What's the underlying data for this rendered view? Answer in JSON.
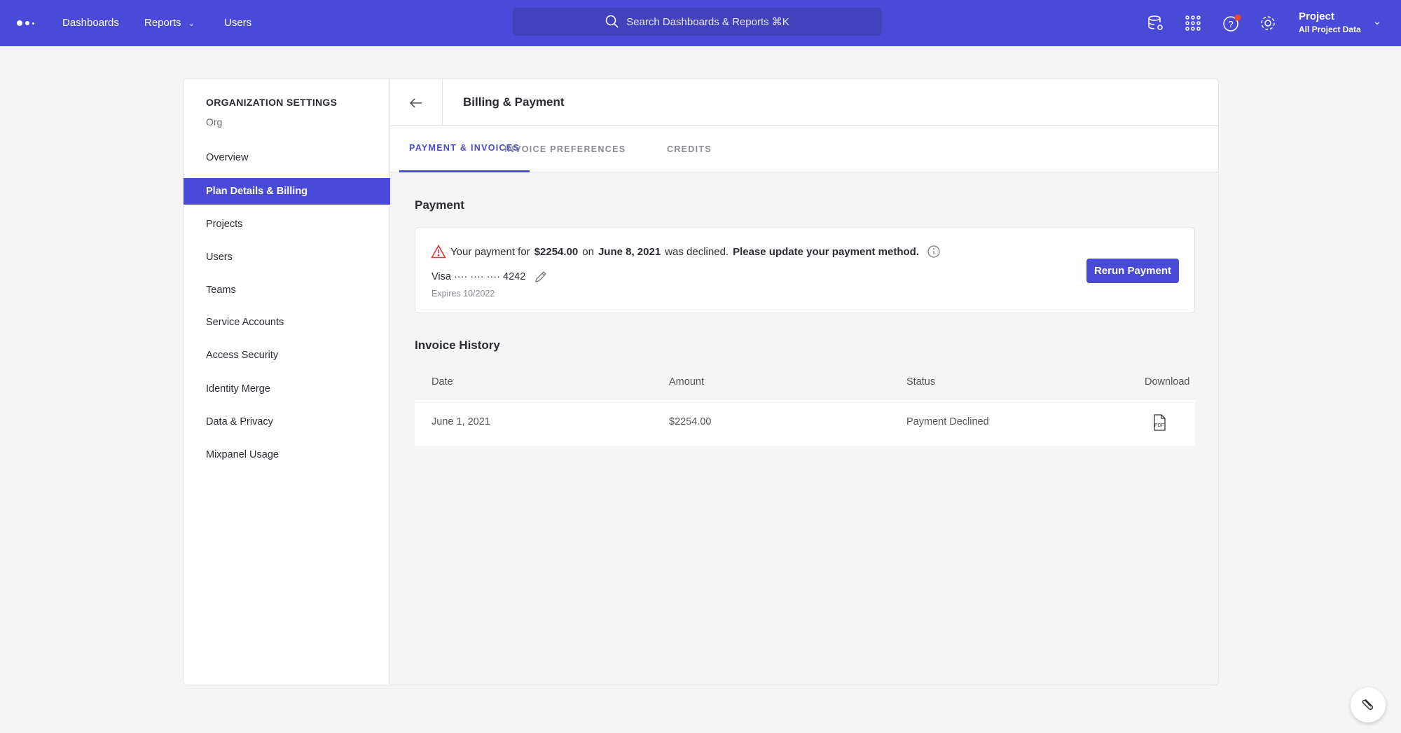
{
  "topbar": {
    "nav": [
      "Dashboards",
      "Reports",
      "Users"
    ],
    "search_placeholder": "Search Dashboards & Reports ⌘K",
    "project_title": "Project",
    "project_subtitle": "All Project Data",
    "notification_color": "#e8482f",
    "accent": "#4a4ad8"
  },
  "sidebar": {
    "title": "ORGANIZATION SETTINGS",
    "org": "Org",
    "items": [
      "Overview",
      "Plan Details & Billing",
      "Projects",
      "Users",
      "Teams",
      "Service Accounts",
      "Access Security",
      "Identity Merge",
      "Data & Privacy",
      "Mixpanel Usage"
    ],
    "active": "Plan Details & Billing"
  },
  "page": {
    "title": "Billing & Payment",
    "tabs": [
      "PAYMENT & INVOICES",
      "INVOICE PREFERENCES",
      "CREDITS"
    ],
    "active_tab": "PAYMENT & INVOICES"
  },
  "payment": {
    "heading": "Payment",
    "msg_1": "Your payment for",
    "amount": "$2254.00",
    "msg_2": "on",
    "date": "June 8, 2021",
    "msg_3": "was declined.",
    "msg_4": "Please update your payment method.",
    "card": "Visa ···· ···· ···· 4242",
    "expires": "Expires 10/2022",
    "rerun_label": "Rerun Payment"
  },
  "invoices": {
    "heading": "Invoice History",
    "columns": [
      "Date",
      "Amount",
      "Status",
      "Download"
    ],
    "rows": [
      {
        "date": "June 1, 2021",
        "amount": "$2254.00",
        "status": "Payment Declined",
        "download": "pdf-icon"
      }
    ]
  }
}
